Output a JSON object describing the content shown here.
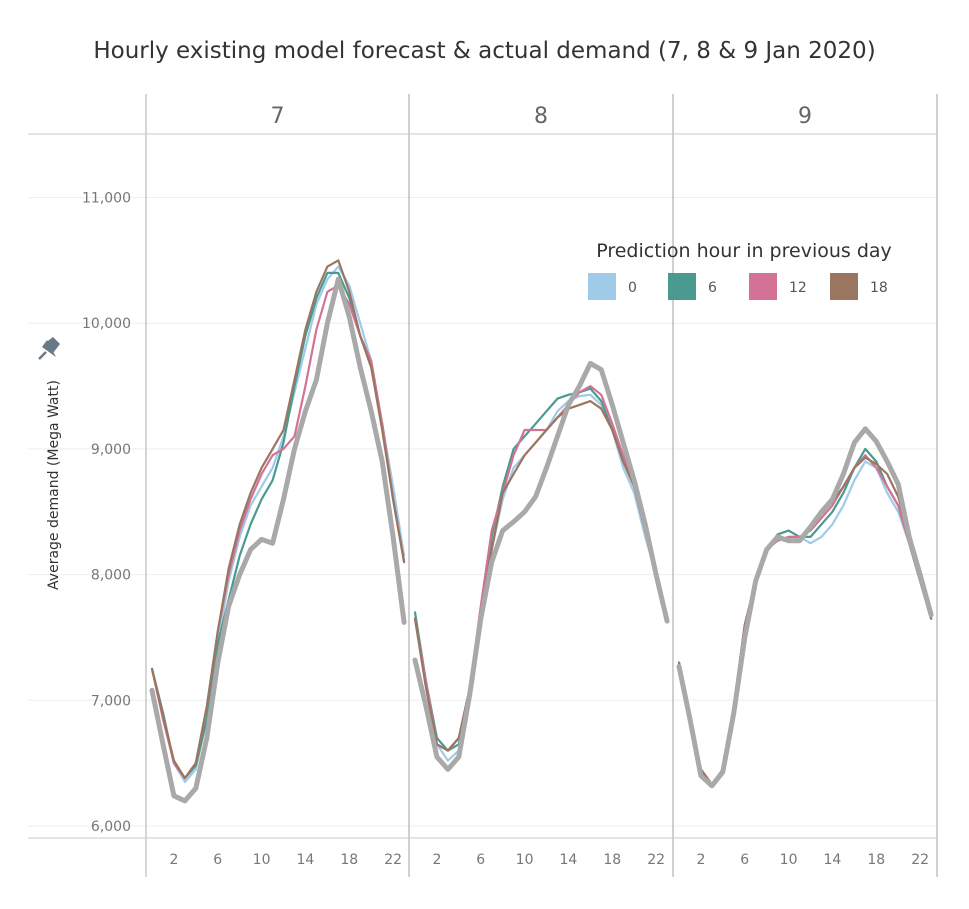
{
  "title": "Hourly existing model forecast & actual demand (7, 8 & 9 Jan 2020)",
  "colors": {
    "actual": "#a9a9a9",
    "series": [
      "#9fcbe9",
      "#4a9a8f",
      "#d37295",
      "#9a7660"
    ],
    "grid": "#eeeeee",
    "axis": "#c8c8c8"
  },
  "chart_data": {
    "type": "line",
    "title": "Hourly existing model forecast & actual demand (7, 8 & 9 Jan 2020)",
    "ylabel": "Average demand (Mega Watt)",
    "xlabel": "",
    "ylim": [
      5980,
      11500
    ],
    "xlim": [
      -0.5,
      23.5
    ],
    "yticks": [
      6000,
      7000,
      8000,
      9000,
      10000,
      11000
    ],
    "ytick_labels": [
      "6,000",
      "7,000",
      "8,000",
      "9,000",
      "10,000",
      "11,000"
    ],
    "xticks": [
      2,
      6,
      10,
      14,
      18,
      22
    ],
    "xtick_labels": [
      "2",
      "6",
      "10",
      "14",
      "18",
      "22"
    ],
    "legend": {
      "title": "Prediction hour in previous day",
      "position": "top-right",
      "items": [
        "0",
        "6",
        "12",
        "18"
      ]
    },
    "panels": [
      {
        "label": "7",
        "x_range": [
          0,
          23
        ],
        "actual": [
          7080,
          6650,
          6240,
          6200,
          6300,
          6700,
          7300,
          7750,
          8000,
          8200,
          8280,
          8250,
          8600,
          9000,
          9300,
          9550,
          10000,
          10350,
          10050,
          9650,
          9300,
          8900,
          8300,
          7620
        ],
        "series": [
          {
            "name": "0",
            "values": [
              7250,
              6900,
              6500,
              6350,
              6450,
              6850,
              7450,
              7950,
              8300,
              8550,
              8700,
              8850,
              9100,
              9450,
              9800,
              10150,
              10350,
              10450,
              10300,
              10000,
              9700,
              9200,
              8700,
              8150
            ]
          },
          {
            "name": "6",
            "values": [
              7250,
              6900,
              6500,
              6380,
              6480,
              6850,
              7450,
              7800,
              8150,
              8400,
              8600,
              8750,
              9050,
              9500,
              9900,
              10200,
              10400,
              10400,
              10200,
              9900,
              9650,
              9200,
              8600,
              8100
            ]
          },
          {
            "name": "12",
            "values": [
              7250,
              6850,
              6500,
              6380,
              6500,
              6950,
              7550,
              8000,
              8350,
              8600,
              8800,
              8950,
              9000,
              9100,
              9500,
              9950,
              10250,
              10300,
              10150,
              9900,
              9700,
              9200,
              8600,
              8100
            ]
          },
          {
            "name": "18",
            "values": [
              7250,
              6880,
              6520,
              6380,
              6500,
              6950,
              7550,
              8050,
              8400,
              8650,
              8850,
              9000,
              9150,
              9550,
              9950,
              10250,
              10450,
              10500,
              10250,
              9900,
              9650,
              9150,
              8600,
              8100
            ]
          }
        ]
      },
      {
        "label": "8",
        "x_range": [
          0,
          23
        ],
        "actual": [
          7320,
          6950,
          6550,
          6450,
          6550,
          7050,
          7650,
          8100,
          8350,
          8420,
          8500,
          8620,
          8850,
          9100,
          9350,
          9500,
          9680,
          9630,
          9350,
          9050,
          8750,
          8400,
          8000,
          7630
        ],
        "series": [
          {
            "name": "0",
            "values": [
              7650,
              7100,
              6650,
              6520,
              6600,
              7000,
              7700,
              8200,
              8600,
              8850,
              8950,
              9050,
              9150,
              9300,
              9380,
              9420,
              9430,
              9350,
              9150,
              8850,
              8650,
              8300,
              8000,
              7680
            ]
          },
          {
            "name": "6",
            "values": [
              7700,
              7150,
              6700,
              6600,
              6650,
              7100,
              7700,
              8300,
              8700,
              9000,
              9100,
              9200,
              9300,
              9400,
              9430,
              9450,
              9480,
              9380,
              9150,
              8900,
              8700,
              8350,
              8000,
              7650
            ]
          },
          {
            "name": "12",
            "values": [
              7650,
              7150,
              6650,
              6600,
              6700,
              7100,
              7750,
              8350,
              8650,
              8950,
              9150,
              9150,
              9150,
              9250,
              9350,
              9450,
              9500,
              9430,
              9200,
              8950,
              8700,
              8350,
              8000,
              7650
            ]
          },
          {
            "name": "18",
            "values": [
              7650,
              7100,
              6650,
              6600,
              6700,
              7100,
              7700,
              8200,
              8650,
              8800,
              8950,
              9050,
              9150,
              9250,
              9320,
              9350,
              9380,
              9320,
              9150,
              8900,
              8700,
              8350,
              8000,
              7650
            ]
          }
        ]
      },
      {
        "label": "9",
        "x_range": [
          0,
          23
        ],
        "actual": [
          7270,
          6850,
          6400,
          6320,
          6430,
          6900,
          7500,
          7950,
          8200,
          8300,
          8270,
          8270,
          8380,
          8500,
          8600,
          8800,
          9050,
          9160,
          9060,
          8900,
          8720,
          8300,
          8000,
          7680
        ],
        "series": [
          {
            "name": "0",
            "values": [
              7300,
              6850,
              6450,
              6330,
              6450,
              6950,
              7600,
              7950,
              8200,
              8270,
              8300,
              8300,
              8250,
              8300,
              8400,
              8550,
              8750,
              8900,
              8850,
              8650,
              8500,
              8250,
              7950,
              7650
            ]
          },
          {
            "name": "6",
            "values": [
              7300,
              6850,
              6450,
              6330,
              6450,
              6950,
              7600,
              7950,
              8200,
              8320,
              8350,
              8300,
              8300,
              8400,
              8500,
              8650,
              8850,
              9000,
              8900,
              8700,
              8550,
              8250,
              7950,
              7650
            ]
          },
          {
            "name": "12",
            "values": [
              7300,
              6850,
              6450,
              6330,
              6450,
              6950,
              7600,
              7950,
              8200,
              8270,
              8300,
              8300,
              8350,
              8450,
              8550,
              8700,
              8850,
              8950,
              8850,
              8700,
              8550,
              8250,
              7950,
              7650
            ]
          },
          {
            "name": "18",
            "values": [
              7300,
              6850,
              6450,
              6330,
              6450,
              6950,
              7600,
              7950,
              8200,
              8280,
              8280,
              8280,
              8380,
              8480,
              8580,
              8700,
              8850,
              8930,
              8880,
              8800,
              8620,
              8300,
              7980,
              7650
            ]
          }
        ]
      }
    ]
  }
}
